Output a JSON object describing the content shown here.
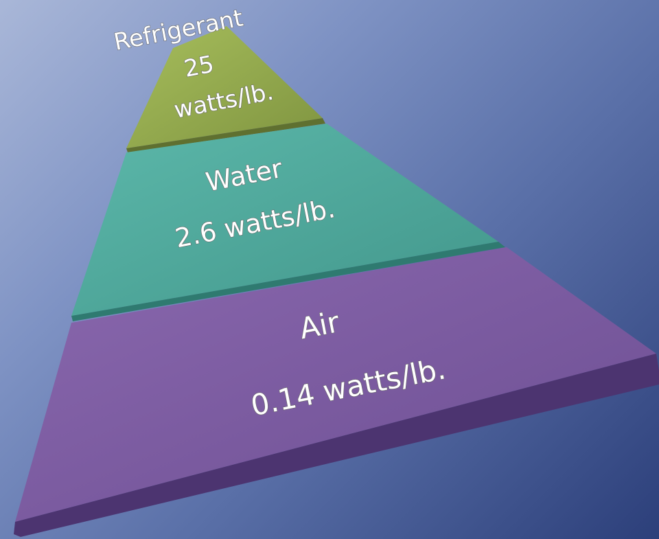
{
  "pyramid": {
    "tiers": [
      {
        "id": "refrigerant",
        "name": "Refrigerant",
        "value": "25",
        "unit": "watts/lb.",
        "color": "#8fa64a"
      },
      {
        "id": "water",
        "name": "Water",
        "value_line": "2.6 watts/lb.",
        "color": "#4fa89c"
      },
      {
        "id": "air",
        "name": "Air",
        "value_line": "0.14 watts/lb.",
        "color": "#7b5ba0"
      }
    ]
  }
}
